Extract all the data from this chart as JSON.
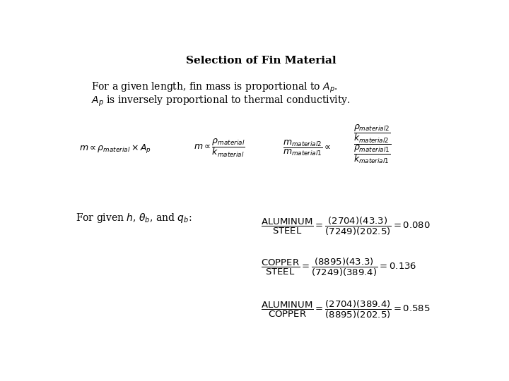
{
  "title": "Selection of Fin Material",
  "title_fontsize": 11,
  "bg_color": "#ffffff",
  "text_color": "#000000",
  "line1": "For a given length, fin mass is proportional to $A_p$.",
  "line2": "$A_p$ is inversely proportional to thermal conductivity.",
  "eq1": "$m \\propto \\rho_{material} \\times A_p$",
  "eq2": "$m \\propto \\dfrac{\\rho_{material}}{k_{material}}$",
  "eq3_left": "$\\dfrac{m_{material2}}{m_{material1}} \\propto$",
  "eq3_right": "$\\dfrac{\\dfrac{\\rho_{material2}}{k_{material2}}}{\\dfrac{\\rho_{material1}}{k_{material1}}}$",
  "for_given": "For given $h$, $\\theta_b$, and $q_b$:",
  "ratio1": "$\\dfrac{\\mathrm{ALUMINUM}}{\\mathrm{STEEL}} = \\dfrac{(2704)(43.3)}{(7249)(202.5)} = 0.080$",
  "ratio2": "$\\dfrac{\\mathrm{COPPER}}{\\mathrm{STEEL}} = \\dfrac{(8895)(43.3)}{(7249)(389.4)} = 0.136$",
  "ratio3": "$\\dfrac{\\mathrm{ALUMINUM}}{\\mathrm{COPPER}} = \\dfrac{(2704)(389.4)}{(8895)(202.5)} = 0.585$",
  "body_fontsize": 10,
  "eq_fontsize": 9,
  "ratio_fontsize": 9.5
}
